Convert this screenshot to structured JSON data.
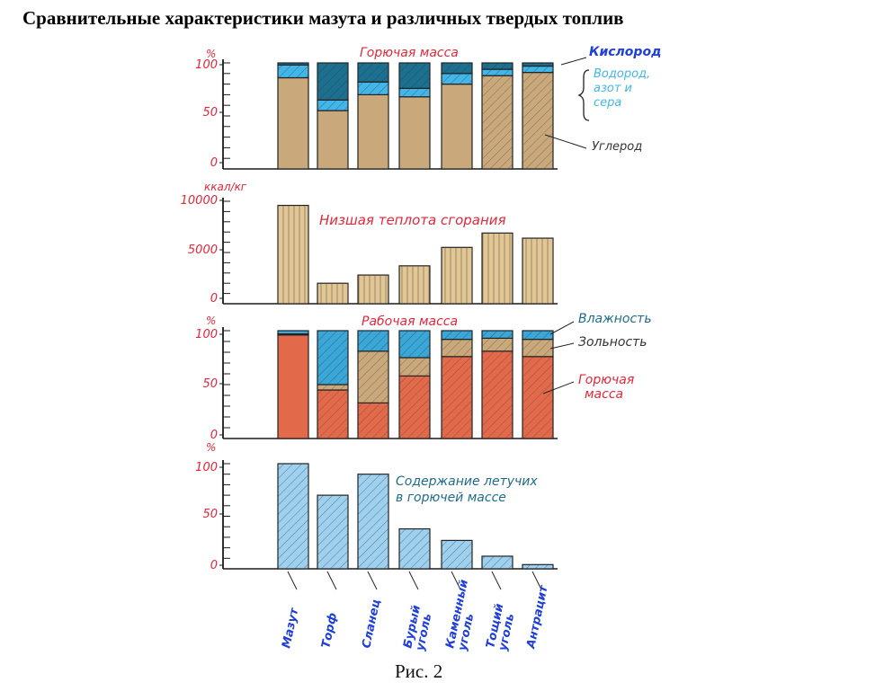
{
  "title": "Сравнительные характеристики мазута и различных твердых топлив",
  "caption": "Рис. 2",
  "colors": {
    "carbon": "#c9a97b",
    "hydrogen_nitrogen_sulfur": "#43b6e8",
    "oxygen": "#1d6f8e",
    "combustible_mass": "#e2694a",
    "ash": "#c9a97b",
    "moisture": "#3aa7d6",
    "volatiles": "#9fd1ee",
    "red_label": "#e8253a",
    "blue_label": "#1f3fd8",
    "axis": "#1a1a1a"
  },
  "chart_data": [
    {
      "id": "combustible_composition",
      "type": "bar",
      "stacked": true,
      "title": "Горючая масса",
      "ylabel": "%",
      "ylim": [
        0,
        100
      ],
      "yticks": [
        "0",
        "50",
        "100"
      ],
      "categories": [
        "Мазут",
        "Торф",
        "Сланец",
        "Бурый уголь",
        "Каменный уголь",
        "Тощий уголь",
        "Антрацит"
      ],
      "series": [
        {
          "name": "Углерод",
          "color_key": "carbon",
          "values": [
            86,
            55,
            70,
            68,
            80,
            88,
            91
          ]
        },
        {
          "name": "Водород, азот и сера",
          "color_key": "hydrogen_nitrogen_sulfur",
          "values": [
            12,
            10,
            12,
            8,
            10,
            6,
            6
          ]
        },
        {
          "name": "Кислород",
          "color_key": "oxygen",
          "values": [
            2,
            35,
            18,
            24,
            10,
            6,
            3
          ]
        }
      ],
      "legend": {
        "oxygen": "Кислород",
        "hns": "Водород, азот и сера",
        "carbon": "Углерод"
      }
    },
    {
      "id": "lower_heating_value",
      "type": "bar",
      "title": "Низшая теплота сгорания",
      "ylabel": "ккал/кг",
      "ylim": [
        0,
        10000
      ],
      "yticks": [
        "0",
        "5000",
        "10000"
      ],
      "categories": [
        "Мазут",
        "Торф",
        "Сланец",
        "Бурый уголь",
        "Каменный уголь",
        "Тощий уголь",
        "Антрацит"
      ],
      "values": [
        9600,
        2000,
        2800,
        3700,
        5500,
        6900,
        6400
      ]
    },
    {
      "id": "working_mass",
      "type": "bar",
      "stacked": true,
      "title": "Рабочая масса",
      "ylabel": "%",
      "ylim": [
        0,
        100
      ],
      "yticks": [
        "0",
        "50",
        "100"
      ],
      "categories": [
        "Мазут",
        "Торф",
        "Сланец",
        "Бурый уголь",
        "Каменный уголь",
        "Тощий уголь",
        "Антрацит"
      ],
      "series": [
        {
          "name": "Горючая масса",
          "color_key": "combustible_mass",
          "values": [
            96,
            45,
            33,
            58,
            76,
            81,
            76
          ]
        },
        {
          "name": "Зольность",
          "color_key": "ash",
          "values": [
            1,
            5,
            48,
            17,
            16,
            12,
            16
          ]
        },
        {
          "name": "Влажность",
          "color_key": "moisture",
          "values": [
            3,
            50,
            19,
            25,
            8,
            7,
            8
          ]
        }
      ],
      "legend": {
        "moisture": "Влажность",
        "ash": "Зольность",
        "combustible": "Горючая масса"
      }
    },
    {
      "id": "volatiles",
      "type": "bar",
      "title": "Содержание летучих в горючей массе",
      "ylabel": "%",
      "ylim": [
        0,
        100
      ],
      "yticks": [
        "0",
        "50",
        "100"
      ],
      "categories": [
        "Мазут",
        "Торф",
        "Сланец",
        "Бурый уголь",
        "Каменный уголь",
        "Тощий уголь",
        "Антрацит"
      ],
      "values": [
        100,
        70,
        90,
        38,
        27,
        12,
        4
      ]
    }
  ],
  "x_labels": [
    "Мазут",
    "Торф",
    "Сланец",
    "Бурый уголь",
    "Каменный уголь",
    "Тощий уголь",
    "Антрацит"
  ],
  "x_label_lines": [
    [
      "Мазут"
    ],
    [
      "Торф"
    ],
    [
      "Сланец"
    ],
    [
      "Бурый",
      "уголь"
    ],
    [
      "Каменный",
      "уголь"
    ],
    [
      "Тощий",
      "уголь"
    ],
    [
      "Антрацит"
    ]
  ],
  "labels": {
    "panel1_title": "Горючая масса",
    "panel1_legend_oxygen": "Кислород",
    "panel1_legend_hns_1": "Водород,",
    "panel1_legend_hns_2": "азот и",
    "panel1_legend_hns_3": "сера",
    "panel1_legend_carbon": "Углерод",
    "panel2_unit": "ккал/кг",
    "panel2_title": "Низшая теплота сгорания",
    "panel3_title": "Рабочая масса",
    "panel3_legend_moisture": "Влажность",
    "panel3_legend_ash": "Зольность",
    "panel3_legend_comb_1": "Горючая",
    "panel3_legend_comb_2": "масса",
    "panel4_title_1": "Содержание летучих",
    "panel4_title_2": "в горючей массе",
    "percent": "%"
  }
}
